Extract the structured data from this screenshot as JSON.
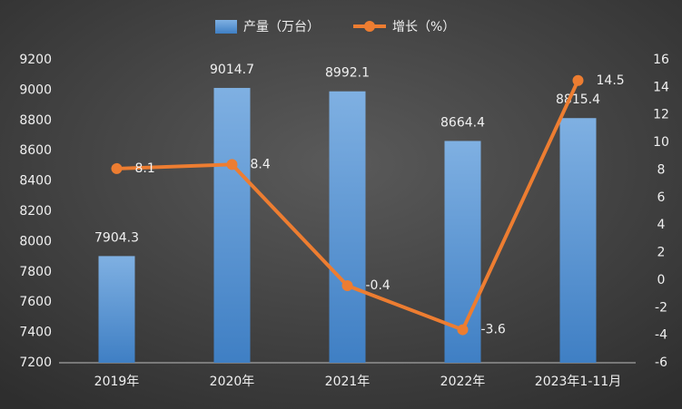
{
  "chart_data": {
    "type": "bar",
    "categories": [
      "2019年",
      "2020年",
      "2021年",
      "2022年",
      "2023年1-11月"
    ],
    "series": [
      {
        "name": "产量（万台）",
        "type": "bar",
        "color": "#5b9bd5",
        "values": [
          7904.3,
          9014.7,
          8992.1,
          8664.4,
          8815.4
        ]
      },
      {
        "name": "增长（%）",
        "type": "line",
        "axis": "y2",
        "color": "#ed7d31",
        "values": [
          8.1,
          8.4,
          -0.4,
          -3.6,
          14.5
        ]
      }
    ],
    "ylim": [
      7200,
      9200
    ],
    "yticks": [
      7200,
      7400,
      7600,
      7800,
      8000,
      8200,
      8400,
      8600,
      8800,
      9000,
      9200
    ],
    "y2lim": [
      -6,
      16
    ],
    "y2ticks": [
      -6,
      -4,
      -2,
      0,
      2,
      4,
      6,
      8,
      10,
      12,
      14,
      16
    ],
    "grid": false
  }
}
